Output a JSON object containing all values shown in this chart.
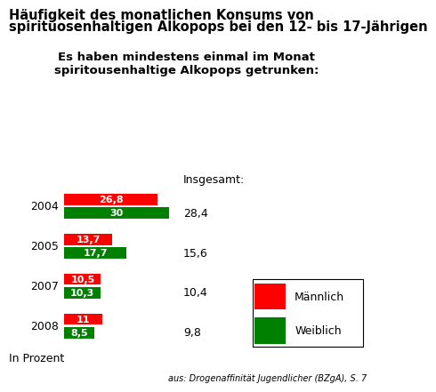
{
  "title_line1": "Häufigkeit des monatlichen Konsums von",
  "title_line2": "spirituosenhaltigen Alkopops bei den 12- bis 17-Jährigen",
  "subtitle": "Es haben mindestens einmal im Monat\nspiritousenhaltige Alkopops getrunken:",
  "insgesamt_label": "Insgesamt:",
  "years": [
    "2004",
    "2005",
    "2007",
    "2008"
  ],
  "maennlich": [
    26.8,
    13.7,
    10.5,
    11.0
  ],
  "weiblich": [
    30.0,
    17.7,
    10.3,
    8.5
  ],
  "insgesamt": [
    "28,4",
    "15,6",
    "10,4",
    "9,8"
  ],
  "maennlich_labels": [
    "26,8",
    "13,7",
    "10,5",
    "11"
  ],
  "weiblich_labels": [
    "30",
    "17,7",
    "10,3",
    "8,5"
  ],
  "color_maennlich": "#ff0000",
  "color_weiblich": "#008000",
  "bar_height": 0.28,
  "xlim_max": 55,
  "xlabel": "In Prozent",
  "source": "aus: Drogenaffinität Jugendlicher (BZgA), S. 7",
  "legend_maennlich": "Männlich",
  "legend_weiblich": "Weiblich",
  "background_color": "#ffffff",
  "title_fontsize": 10.5,
  "subtitle_fontsize": 9.5,
  "bar_label_fontsize": 8,
  "year_fontsize": 9,
  "insgesamt_fontsize": 9,
  "source_fontsize": 7
}
